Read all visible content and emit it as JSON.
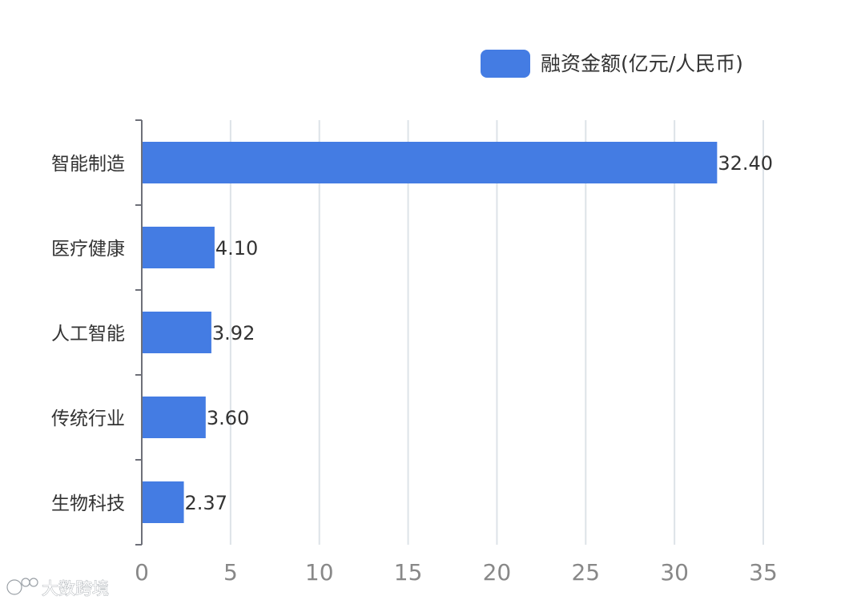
{
  "chart_data": {
    "type": "bar",
    "orientation": "horizontal",
    "categories": [
      "智能制造",
      "医疗健康",
      "人工智能",
      "传统行业",
      "生物科技"
    ],
    "series": [
      {
        "name": "融资金额(亿元/人民币)",
        "values": [
          32.4,
          4.1,
          3.92,
          3.6,
          2.37
        ]
      }
    ],
    "data_labels": [
      "32.40",
      "4.10",
      "3.92",
      "3.60",
      "2.37"
    ],
    "x_ticks": [
      "0",
      "5",
      "10",
      "15",
      "20",
      "25",
      "30",
      "35"
    ],
    "xlim": [
      0,
      35
    ],
    "grid": true,
    "legend_position": "top-right",
    "colors": {
      "bar": "#447ce3",
      "grid": "#dde3e8",
      "axis": "#6e7079",
      "label": "#333333",
      "tick": "#888888"
    }
  },
  "watermark": {
    "text": "大数跨境"
  }
}
